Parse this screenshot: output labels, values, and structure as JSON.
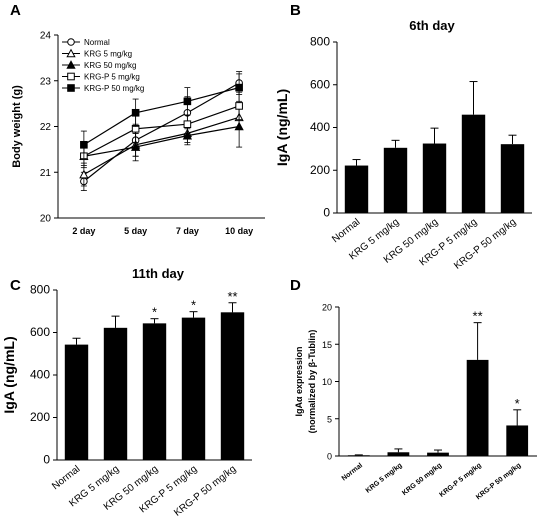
{
  "chart_data": [
    {
      "panel": "A",
      "type": "line",
      "title": "",
      "xlabel": "",
      "ylabel": "Body weight (g)",
      "categories": [
        "2 day",
        "5 day",
        "7 day",
        "10 day"
      ],
      "ylim": [
        20,
        24
      ],
      "yticks": [
        20,
        21,
        22,
        23,
        24
      ],
      "legend_position": "top-left",
      "series": [
        {
          "name": "Normal",
          "marker": "open-circle",
          "values": [
            20.8,
            21.7,
            22.3,
            22.95
          ],
          "errors": [
            0.2,
            0.35,
            0.35,
            0.25
          ]
        },
        {
          "name": "KRG 5 mg/kg",
          "marker": "open-triangle",
          "values": [
            20.95,
            21.6,
            21.85,
            22.2
          ],
          "errors": [
            0.25,
            0.25,
            0.2,
            0.25
          ]
        },
        {
          "name": "KRG 50 mg/kg",
          "marker": "filled-triangle",
          "values": [
            21.35,
            21.55,
            21.8,
            22.0
          ],
          "errors": [
            0.25,
            0.3,
            0.2,
            0.45
          ]
        },
        {
          "name": "KRG-P 5 mg/kg",
          "marker": "open-square",
          "values": [
            21.35,
            21.95,
            22.05,
            22.45
          ],
          "errors": [
            0.2,
            0.3,
            0.2,
            0.3
          ]
        },
        {
          "name": "KRG-P 50 mg/kg",
          "marker": "filled-square",
          "values": [
            21.6,
            22.3,
            22.55,
            22.85
          ],
          "errors": [
            0.3,
            0.3,
            0.3,
            0.3
          ]
        }
      ]
    },
    {
      "panel": "B",
      "type": "bar",
      "title": "6th day",
      "xlabel": "",
      "ylabel": "IgA (ng/mL)",
      "categories": [
        "Normal",
        "KRG 5 mg/kg",
        "KRG 50 mg/kg",
        "KRG-P 5 mg/kg",
        "KRG-P 50 mg/kg"
      ],
      "values": [
        222,
        305,
        325,
        460,
        322
      ],
      "errors": [
        28,
        35,
        72,
        155,
        42
      ],
      "significance": [
        "",
        "",
        "",
        "",
        ""
      ],
      "ylim": [
        0,
        800
      ],
      "yticks": [
        0,
        200,
        400,
        600,
        800
      ]
    },
    {
      "panel": "C",
      "type": "bar",
      "title": "11th day",
      "xlabel": "",
      "ylabel": "IgA (ng/mL)",
      "categories": [
        "Normal",
        "KRG 5 mg/kg",
        "KRG 50 mg/kg",
        "KRG-P 5 mg/kg",
        "KRG-P 50 mg/kg"
      ],
      "values": [
        543,
        622,
        643,
        670,
        695
      ],
      "errors": [
        30,
        55,
        22,
        28,
        45
      ],
      "significance": [
        "",
        "",
        "*",
        "*",
        "**"
      ],
      "ylim": [
        0,
        800
      ],
      "yticks": [
        0,
        200,
        400,
        600,
        800
      ]
    },
    {
      "panel": "D",
      "type": "bar",
      "title": "",
      "xlabel": "",
      "ylabel": "IgAα expression",
      "ylabel2": "(normalized by β-Tublin)",
      "categories": [
        "Normal",
        "KRG 5 mg/kg",
        "KRG 50 mg/kg",
        "KRG-P 5 mg/kg",
        "KRG-P 50 mg/kg"
      ],
      "values": [
        0.1,
        0.5,
        0.45,
        12.9,
        4.1
      ],
      "errors": [
        0.05,
        0.45,
        0.35,
        5.0,
        2.1
      ],
      "significance": [
        "",
        "",
        "",
        "**",
        "*"
      ],
      "ylim": [
        0,
        20
      ],
      "yticks": [
        0,
        5,
        10,
        15,
        20
      ]
    }
  ]
}
